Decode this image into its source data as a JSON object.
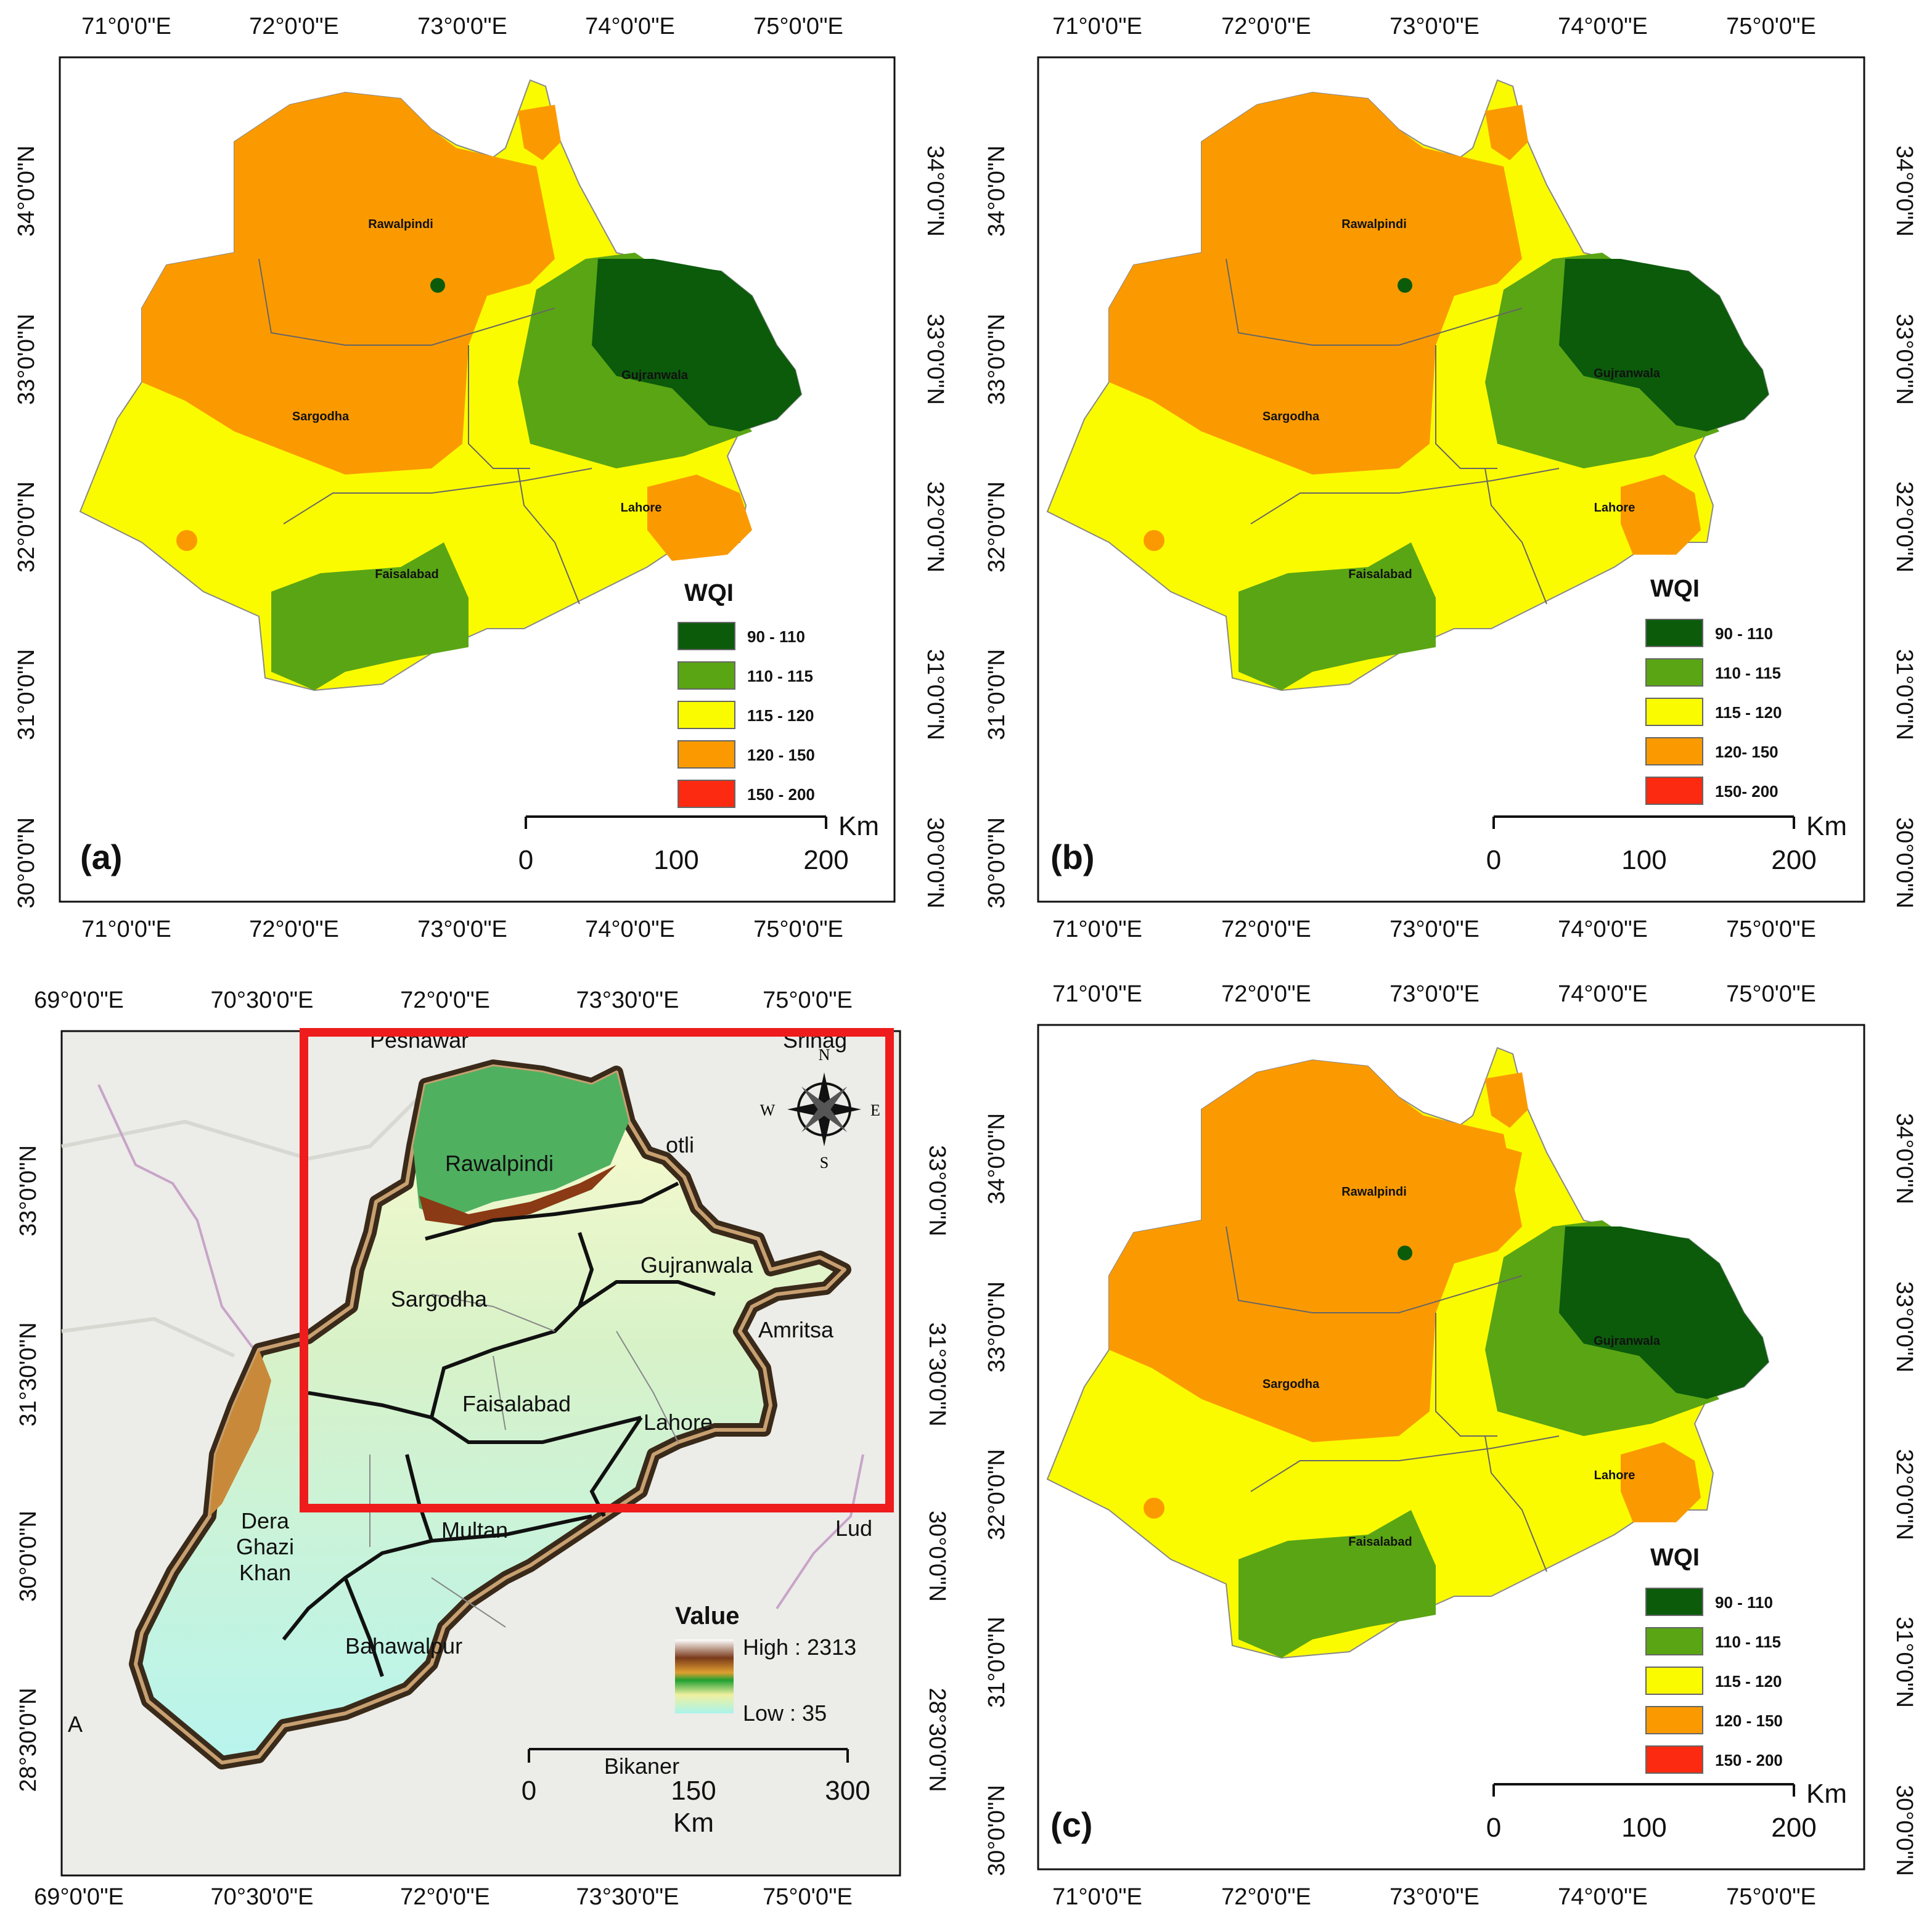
{
  "panels": {
    "a": {
      "label": "(a)",
      "top_ticks": [
        "71°0'0\"E",
        "72°0'0\"E",
        "73°0'0\"E",
        "74°0'0\"E",
        "75°0'0\"E"
      ],
      "side_ticks": [
        "34°0'0\"N",
        "33°0'0\"N",
        "32°0'0\"N",
        "31°0'0\"N",
        "30°0'0\"N"
      ],
      "cities": [
        "Rawalpindi",
        "Sargodha",
        "Gujranwala",
        "Lahore",
        "Faisalabad"
      ],
      "legend_title": "WQI",
      "legend": [
        {
          "label": "90 - 110",
          "color": "#0b5b0b"
        },
        {
          "label": "110 - 115",
          "color": "#5aa514"
        },
        {
          "label": "115 - 120",
          "color": "#fbfb00"
        },
        {
          "label": "120 - 150",
          "color": "#fb9a00"
        },
        {
          "label": "150 - 200",
          "color": "#fb2a10"
        }
      ],
      "scale": {
        "unit": "Km",
        "ticks": [
          "0",
          "100",
          "200"
        ]
      }
    },
    "b": {
      "label": "(b)",
      "top_ticks": [
        "71°0'0\"E",
        "72°0'0\"E",
        "73°0'0\"E",
        "74°0'0\"E",
        "75°0'0\"E"
      ],
      "side_ticks": [
        "34°0'0\"N",
        "33°0'0\"N",
        "32°0'0\"N",
        "31°0'0\"N",
        "30°0'0\"N"
      ],
      "cities": [
        "Rawalpindi",
        "Sargodha",
        "Gujranwala",
        "Lahore",
        "Faisalabad"
      ],
      "legend_title": "WQI",
      "legend": [
        {
          "label": "90 - 110",
          "color": "#0b5b0b"
        },
        {
          "label": "110 - 115",
          "color": "#5aa514"
        },
        {
          "label": "115 - 120",
          "color": "#fbfb00"
        },
        {
          "label": "120- 150",
          "color": "#fb9a00"
        },
        {
          "label": "150- 200",
          "color": "#fb2a10"
        }
      ],
      "scale": {
        "unit": "Km",
        "ticks": [
          "0",
          "100",
          "200"
        ]
      }
    },
    "c": {
      "label": "(c)",
      "top_ticks": [
        "71°0'0\"E",
        "72°0'0\"E",
        "73°0'0\"E",
        "74°0'0\"E",
        "75°0'0\"E"
      ],
      "side_ticks": [
        "34°0'0\"N",
        "33°0'0\"N",
        "32°0'0\"N",
        "31°0'0\"N",
        "30°0'0\"N"
      ],
      "cities": [
        "Rawalpindi",
        "Sargodha",
        "Gujranwala",
        "Lahore",
        "Faisalabad"
      ],
      "legend_title": "WQI",
      "legend": [
        {
          "label": "90 - 110",
          "color": "#0b5b0b"
        },
        {
          "label": "110 - 115",
          "color": "#5aa514"
        },
        {
          "label": "115 - 120",
          "color": "#fbfb00"
        },
        {
          "label": "120 - 150",
          "color": "#fb9a00"
        },
        {
          "label": "150 - 200",
          "color": "#fb2a10"
        }
      ],
      "scale": {
        "unit": "Km",
        "ticks": [
          "0",
          "100",
          "200"
        ]
      }
    },
    "d": {
      "top_ticks": [
        "69°0'0\"E",
        "70°30'0\"E",
        "72°0'0\"E",
        "73°30'0\"E",
        "75°0'0\"E"
      ],
      "left_ticks": [
        "33°0'0\"N",
        "31°30'0\"N",
        "30°0'0\"N",
        "28°30'0\"N"
      ],
      "right_ticks": [
        "33°0'0\"N",
        "31°30'0\"N",
        "30°0'0\"N",
        "28°30'0\"N"
      ],
      "divisions": [
        "Rawalpindi",
        "Gujranwala",
        "Sargodha",
        "Faisalabad",
        "Lahore",
        "Multan",
        "Dera",
        "Ghazi",
        "Khan",
        "Bahawalpur"
      ],
      "basemap_places": [
        "Peshawar",
        "Srinag",
        "otli",
        "Amritsa",
        "Lud",
        "Bikaner",
        "A"
      ],
      "compass": {
        "n": "N",
        "s": "S",
        "e": "E",
        "w": "W"
      },
      "legend_title": "Value",
      "legend_high": "High : 2313",
      "legend_low": "Low : 35",
      "scale": {
        "unit": "Km",
        "ticks": [
          "0",
          "150",
          "300"
        ]
      }
    }
  }
}
